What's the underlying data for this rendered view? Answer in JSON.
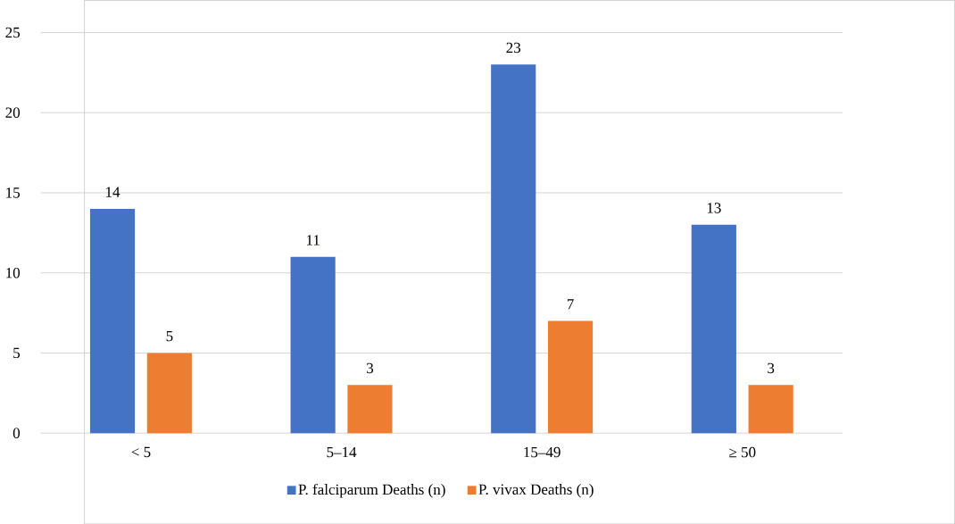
{
  "chart_data": {
    "type": "bar",
    "categories": [
      "< 5",
      "5–14",
      "15–49",
      "≥ 50"
    ],
    "series": [
      {
        "name": "P. falciparum Deaths (n)",
        "color": "#4472c4",
        "values": [
          14,
          11,
          23,
          13
        ]
      },
      {
        "name": "P. vivax Deaths (n)",
        "color": "#ed7d31",
        "values": [
          5,
          3,
          7,
          3
        ]
      }
    ],
    "ylim": [
      0,
      25
    ],
    "yticks": [
      0,
      5,
      10,
      15,
      20,
      25
    ],
    "grid": "y",
    "legend": "bottom",
    "data_labels": true
  }
}
